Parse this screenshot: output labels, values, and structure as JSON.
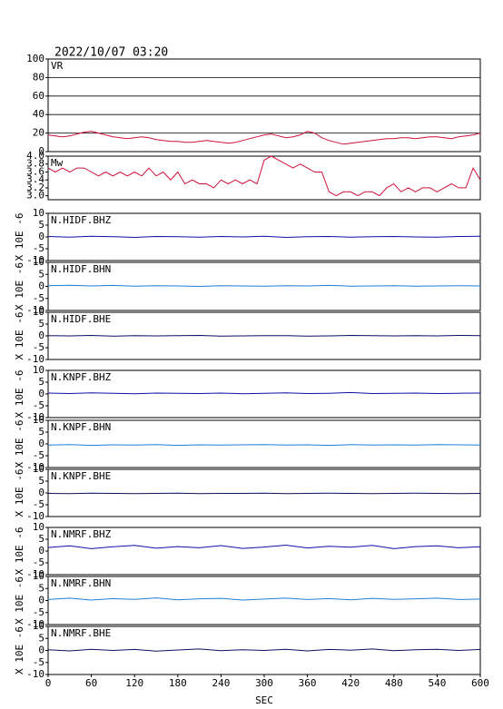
{
  "chart_data": [
    {
      "type": "line",
      "title": "2022/10/07 03:20",
      "label": "VR",
      "color": "#d0103a",
      "grid": true,
      "xlim": [
        0,
        600
      ],
      "ylim": [
        0,
        100
      ],
      "yticks": [
        0,
        20,
        40,
        60,
        80,
        100
      ],
      "x": [
        0,
        10,
        20,
        30,
        40,
        50,
        60,
        70,
        80,
        90,
        100,
        110,
        120,
        130,
        140,
        150,
        160,
        170,
        180,
        190,
        200,
        210,
        220,
        230,
        240,
        250,
        260,
        270,
        280,
        290,
        300,
        310,
        320,
        330,
        340,
        350,
        360,
        370,
        380,
        390,
        400,
        410,
        420,
        430,
        440,
        450,
        460,
        470,
        480,
        490,
        500,
        510,
        520,
        530,
        540,
        550,
        560,
        570,
        580,
        590,
        600
      ],
      "values": [
        18,
        17,
        16,
        17,
        19,
        21,
        22,
        20,
        18,
        16,
        15,
        14,
        15,
        16,
        15,
        13,
        12,
        11,
        11,
        10,
        10,
        11,
        12,
        11,
        10,
        9,
        10,
        12,
        14,
        16,
        18,
        19,
        17,
        15,
        16,
        18,
        22,
        20,
        15,
        12,
        10,
        8,
        9,
        10,
        11,
        12,
        13,
        14,
        14,
        15,
        15,
        14,
        15,
        16,
        16,
        15,
        14,
        16,
        17,
        18,
        20
      ]
    },
    {
      "type": "line",
      "label": "Mw",
      "color": "#d0103a",
      "grid": false,
      "xlim": [
        0,
        600
      ],
      "ylim": [
        2.9,
        4.0
      ],
      "yticks": [
        {
          "value": 3.0,
          "label": "3.0"
        },
        3.2,
        3.4,
        3.6,
        3.8,
        {
          "value": 4.0,
          "label": "4.0"
        }
      ],
      "x": [
        0,
        10,
        20,
        30,
        40,
        50,
        60,
        70,
        80,
        90,
        100,
        110,
        120,
        130,
        140,
        150,
        160,
        170,
        180,
        190,
        200,
        210,
        220,
        230,
        240,
        250,
        260,
        270,
        280,
        290,
        300,
        310,
        320,
        330,
        340,
        350,
        360,
        370,
        380,
        390,
        400,
        410,
        420,
        430,
        440,
        450,
        460,
        470,
        480,
        490,
        500,
        510,
        520,
        530,
        540,
        550,
        560,
        570,
        580,
        590,
        600
      ],
      "values": [
        3.7,
        3.6,
        3.7,
        3.6,
        3.7,
        3.7,
        3.6,
        3.5,
        3.6,
        3.5,
        3.6,
        3.5,
        3.6,
        3.5,
        3.7,
        3.5,
        3.6,
        3.4,
        3.6,
        3.3,
        3.4,
        3.3,
        3.3,
        3.2,
        3.4,
        3.3,
        3.4,
        3.3,
        3.4,
        3.3,
        3.9,
        4.0,
        3.9,
        3.8,
        3.7,
        3.8,
        3.7,
        3.6,
        3.6,
        3.1,
        3.0,
        3.1,
        3.1,
        3.0,
        3.1,
        3.1,
        3.0,
        3.2,
        3.3,
        3.1,
        3.2,
        3.1,
        3.2,
        3.2,
        3.1,
        3.2,
        3.3,
        3.2,
        3.2,
        3.7,
        3.4
      ]
    },
    {
      "type": "line",
      "label": "N.HIDF.BHZ",
      "ylabel": "X 10E -6",
      "color": "#1010a8",
      "xlim": [
        0,
        600
      ],
      "ylim": [
        -10,
        10
      ],
      "yticks": [
        -10,
        -5,
        0,
        5,
        10
      ],
      "x": [
        0,
        30,
        60,
        90,
        120,
        150,
        180,
        210,
        240,
        270,
        300,
        330,
        360,
        390,
        420,
        450,
        480,
        510,
        540,
        570,
        600
      ],
      "values": [
        0.2,
        -0.1,
        0.3,
        0.1,
        -0.2,
        0.2,
        0.1,
        -0.1,
        0.2,
        0.0,
        0.3,
        -0.2,
        0.1,
        0.2,
        -0.1,
        0.1,
        0.2,
        0.0,
        -0.1,
        0.2,
        0.3
      ]
    },
    {
      "type": "line",
      "label": "N.HIDF.BHN",
      "ylabel": "X 10E -6",
      "color": "#1e80d8",
      "xlim": [
        0,
        600
      ],
      "ylim": [
        -10,
        10
      ],
      "yticks": [
        -10,
        -5,
        0,
        5,
        10
      ],
      "x": [
        0,
        30,
        60,
        90,
        120,
        150,
        180,
        210,
        240,
        270,
        300,
        330,
        360,
        390,
        420,
        450,
        480,
        510,
        540,
        570,
        600
      ],
      "values": [
        0.3,
        0.5,
        0.2,
        0.4,
        0.1,
        0.3,
        0.2,
        0.0,
        0.3,
        0.2,
        0.1,
        0.3,
        0.2,
        0.4,
        0.1,
        0.2,
        0.3,
        0.1,
        0.2,
        0.3,
        0.2
      ]
    },
    {
      "type": "line",
      "label": "N.HIDF.BHE",
      "ylabel": "X 10E -6",
      "color": "#101060",
      "xlim": [
        0,
        600
      ],
      "ylim": [
        -10,
        10
      ],
      "yticks": [
        -10,
        -5,
        0,
        5,
        10
      ],
      "x": [
        0,
        30,
        60,
        90,
        120,
        150,
        180,
        210,
        240,
        270,
        300,
        330,
        360,
        390,
        420,
        450,
        480,
        510,
        540,
        570,
        600
      ],
      "values": [
        0.1,
        0.0,
        0.2,
        -0.1,
        0.1,
        0.0,
        0.1,
        0.2,
        -0.1,
        0.0,
        0.1,
        0.1,
        -0.1,
        0.0,
        0.2,
        0.1,
        0.0,
        0.1,
        0.0,
        0.2,
        0.1
      ]
    },
    {
      "type": "line",
      "label": "N.KNPF.BHZ",
      "ylabel": "X 10E -6",
      "color": "#1010a8",
      "xlim": [
        0,
        600
      ],
      "ylim": [
        -10,
        10
      ],
      "yticks": [
        -10,
        -5,
        0,
        5,
        10
      ],
      "x": [
        0,
        30,
        60,
        90,
        120,
        150,
        180,
        210,
        240,
        270,
        300,
        330,
        360,
        390,
        420,
        450,
        480,
        510,
        540,
        570,
        600
      ],
      "values": [
        0.4,
        0.2,
        0.5,
        0.3,
        0.1,
        0.4,
        0.3,
        0.2,
        0.4,
        0.1,
        0.3,
        0.5,
        0.2,
        0.3,
        0.6,
        0.2,
        0.3,
        0.4,
        0.2,
        0.3,
        0.4
      ]
    },
    {
      "type": "line",
      "label": "N.KNPF.BHN",
      "ylabel": "X 10E -6",
      "color": "#1e80d8",
      "xlim": [
        0,
        600
      ],
      "ylim": [
        -10,
        10
      ],
      "yticks": [
        -10,
        -5,
        0,
        5,
        10
      ],
      "x": [
        0,
        30,
        60,
        90,
        120,
        150,
        180,
        210,
        240,
        270,
        300,
        330,
        360,
        390,
        420,
        450,
        480,
        510,
        540,
        570,
        600
      ],
      "values": [
        -0.5,
        -0.3,
        -0.6,
        -0.4,
        -0.5,
        -0.3,
        -0.6,
        -0.4,
        -0.5,
        -0.4,
        -0.3,
        -0.5,
        -0.4,
        -0.6,
        -0.3,
        -0.5,
        -0.4,
        -0.5,
        -0.3,
        -0.4,
        -0.5
      ]
    },
    {
      "type": "line",
      "label": "N.KNPF.BHE",
      "ylabel": "X 10E -6",
      "color": "#101060",
      "xlim": [
        0,
        600
      ],
      "ylim": [
        -10,
        10
      ],
      "yticks": [
        -10,
        -5,
        0,
        5,
        10
      ],
      "x": [
        0,
        30,
        60,
        90,
        120,
        150,
        180,
        210,
        240,
        270,
        300,
        330,
        360,
        390,
        420,
        450,
        480,
        510,
        540,
        570,
        600
      ],
      "values": [
        -0.2,
        -0.3,
        -0.1,
        -0.2,
        -0.3,
        -0.2,
        -0.1,
        -0.3,
        -0.2,
        -0.2,
        -0.1,
        -0.3,
        -0.2,
        -0.1,
        -0.2,
        -0.3,
        -0.2,
        -0.1,
        -0.2,
        -0.3,
        -0.2
      ]
    },
    {
      "type": "line",
      "label": "N.NMRF.BHZ",
      "ylabel": "X 10E -6",
      "color": "#1010a8",
      "xlim": [
        0,
        600
      ],
      "ylim": [
        -10,
        10
      ],
      "yticks": [
        -10,
        -5,
        0,
        5,
        10
      ],
      "x": [
        0,
        30,
        60,
        90,
        120,
        150,
        180,
        210,
        240,
        270,
        300,
        330,
        360,
        390,
        420,
        450,
        480,
        510,
        540,
        570,
        600
      ],
      "values": [
        1.5,
        2.2,
        1.0,
        1.8,
        2.4,
        1.2,
        1.9,
        1.4,
        2.3,
        1.1,
        1.7,
        2.5,
        1.3,
        2.0,
        1.6,
        2.4,
        1.0,
        1.9,
        2.2,
        1.4,
        1.8
      ]
    },
    {
      "type": "line",
      "label": "N.NMRF.BHN",
      "ylabel": "X 10E -6",
      "color": "#1e80d8",
      "xlim": [
        0,
        600
      ],
      "ylim": [
        -10,
        10
      ],
      "yticks": [
        -10,
        -5,
        0,
        5,
        10
      ],
      "x": [
        0,
        30,
        60,
        90,
        120,
        150,
        180,
        210,
        240,
        270,
        300,
        330,
        360,
        390,
        420,
        450,
        480,
        510,
        540,
        570,
        600
      ],
      "values": [
        0.4,
        1.0,
        0.2,
        0.8,
        0.5,
        1.1,
        0.3,
        0.7,
        0.9,
        0.2,
        0.6,
        1.0,
        0.4,
        0.8,
        0.3,
        0.9,
        0.5,
        0.7,
        1.0,
        0.4,
        0.6
      ]
    },
    {
      "type": "line",
      "label": "N.NMRF.BHE",
      "ylabel": "X 10E -6",
      "color": "#101060",
      "xlim": [
        0,
        600
      ],
      "ylim": [
        -10,
        10
      ],
      "yticks": [
        -10,
        -5,
        0,
        5,
        10
      ],
      "xticks": [
        0,
        60,
        120,
        180,
        240,
        300,
        360,
        420,
        480,
        540,
        600
      ],
      "xlabel": "SEC",
      "x": [
        0,
        30,
        60,
        90,
        120,
        150,
        180,
        210,
        240,
        270,
        300,
        330,
        360,
        390,
        420,
        450,
        480,
        510,
        540,
        570,
        600
      ],
      "values": [
        0.3,
        -0.2,
        0.5,
        0.0,
        0.4,
        -0.3,
        0.2,
        0.6,
        -0.1,
        0.3,
        0.0,
        0.5,
        -0.2,
        0.4,
        0.1,
        0.6,
        -0.1,
        0.3,
        0.5,
        0.0,
        0.4
      ]
    }
  ]
}
